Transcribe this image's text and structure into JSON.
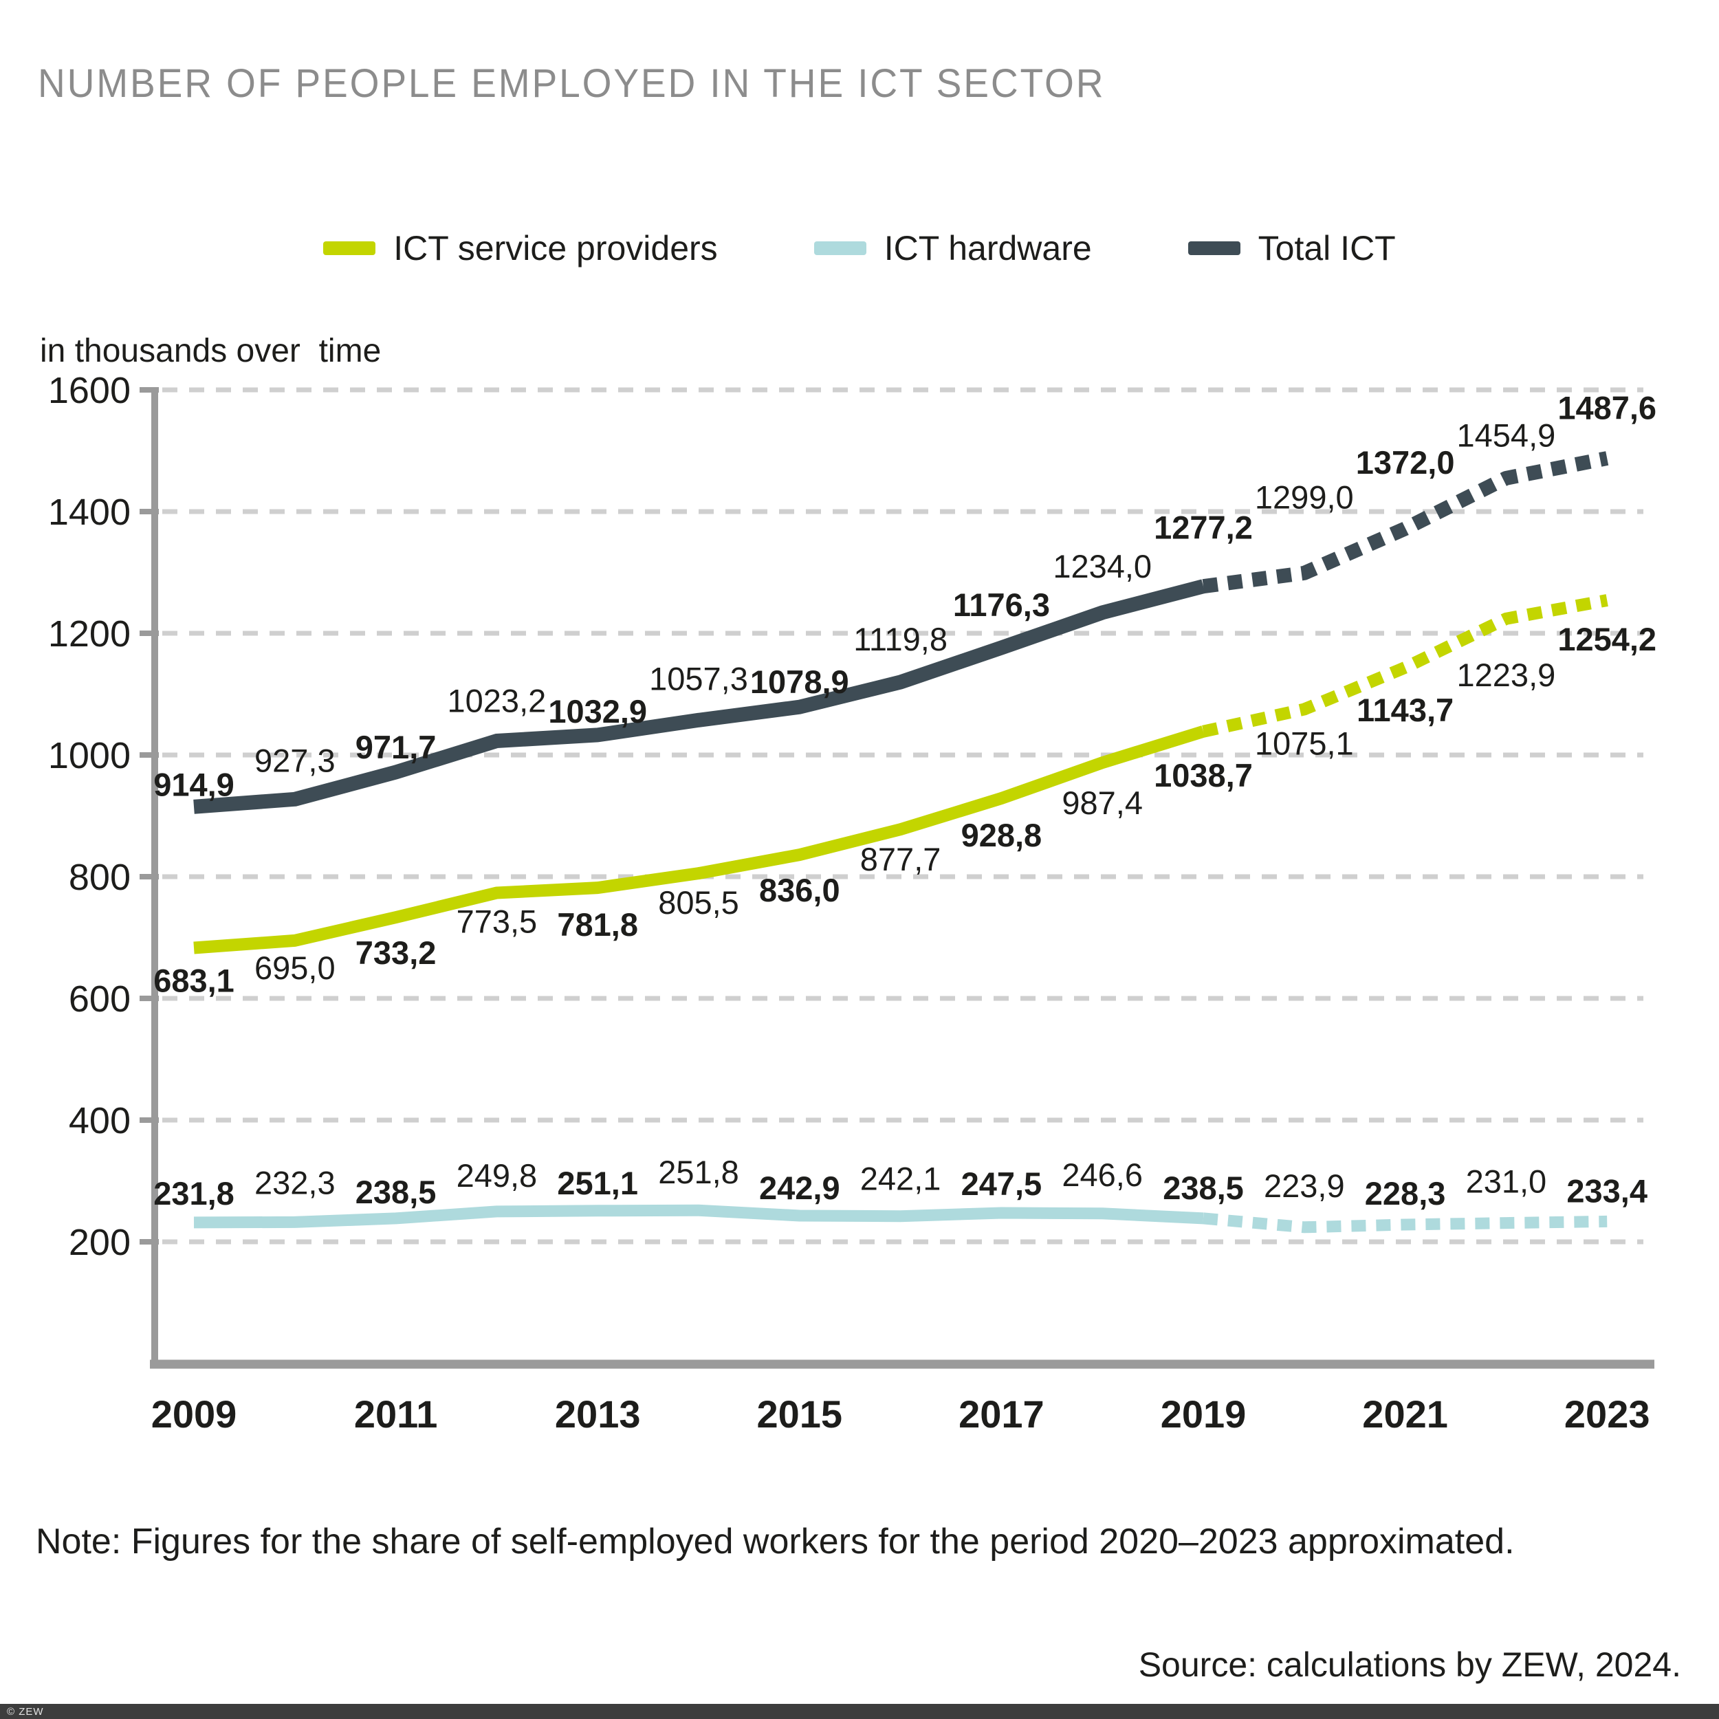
{
  "title": "NUMBER OF PEOPLE EMPLOYED IN THE ICT SECTOR",
  "unit_label": "in thousands over  time",
  "note": "Note: Figures for the share of self-employed workers for the period 2020–2023 approximated.",
  "source": "Source: calculations by ZEW, 2024.",
  "footer": {
    "copyright": "© ZEW"
  },
  "colors": {
    "title_text": "#8c8c8c",
    "body_text": "#1d1d1b",
    "grid": "#cfcfcf",
    "axis": "#9a9a9a",
    "footer_bar": "#3d3d3d",
    "footer_text": "#e3e3e3"
  },
  "chart_data": {
    "type": "line",
    "title": "NUMBER OF PEOPLE EMPLOYED IN THE ICT SECTOR",
    "ylabel": "in thousands over time",
    "x": [
      2009,
      2010,
      2011,
      2012,
      2013,
      2014,
      2015,
      2016,
      2017,
      2018,
      2019,
      2020,
      2021,
      2022,
      2023
    ],
    "x_tick_labels": [
      "2009",
      "2011",
      "2013",
      "2015",
      "2017",
      "2019",
      "2021",
      "2023"
    ],
    "yticks": [
      200,
      400,
      600,
      800,
      1000,
      1200,
      1400,
      1600
    ],
    "ylim": [
      0,
      1600
    ],
    "series": [
      {
        "key": "service",
        "name": "ICT service providers",
        "color": "#c3d500",
        "values": [
          683.1,
          695.0,
          733.2,
          773.5,
          781.8,
          805.5,
          836.0,
          877.7,
          928.8,
          987.4,
          1038.7,
          1075.1,
          1143.7,
          1223.9,
          1254.2
        ],
        "labels": [
          "683,1",
          "695,0",
          "733,2",
          "773,5",
          "781,8",
          "805,5",
          "836,0",
          "877,7",
          "928,8",
          "987,4",
          "1038,7",
          "1075,1",
          "1143,7",
          "1223,9",
          "1254,2"
        ]
      },
      {
        "key": "hardware",
        "name": "ICT hardware",
        "color": "#aedadd",
        "values": [
          231.8,
          232.3,
          238.5,
          249.8,
          251.1,
          251.8,
          242.9,
          242.1,
          247.5,
          246.6,
          238.5,
          223.9,
          228.3,
          231.0,
          233.4
        ],
        "labels": [
          "231,8",
          "232,3",
          "238,5",
          "249,8",
          "251,1",
          "251,8",
          "242,9",
          "242,1",
          "247,5",
          "246,6",
          "238,5",
          "223,9",
          "228,3",
          "231,0",
          "233,4"
        ]
      },
      {
        "key": "total",
        "name": "Total ICT",
        "color": "#3e4c55",
        "values": [
          914.9,
          927.3,
          971.7,
          1023.2,
          1032.9,
          1057.3,
          1078.9,
          1119.8,
          1176.3,
          1234.0,
          1277.2,
          1299.0,
          1372.0,
          1454.9,
          1487.6
        ],
        "labels": [
          "914,9",
          "927,3",
          "971,7",
          "1023,2",
          "1032,9",
          "1057,3",
          "1078,9",
          "1119,8",
          "1176,3",
          "1234,0",
          "1277,2",
          "1299,0",
          "1372,0",
          "1454,9",
          "1487,6"
        ]
      }
    ],
    "layout": {
      "legend_position": "top",
      "grid": "horizontal-dashed",
      "solid_range_years": [
        2009,
        2019
      ],
      "dashed_range_years": [
        2019,
        2023
      ],
      "line_widths": {
        "service": 18,
        "hardware": 17,
        "total": 21
      },
      "label_dy": {
        "service": [
          48,
          40,
          52,
          42,
          54,
          43,
          52,
          44,
          54,
          59,
          64,
          50,
          62,
          82,
          57
        ],
        "hardware": [
          -42,
          -57,
          -38,
          -52,
          -40,
          -55,
          -40,
          -54,
          -42,
          -56,
          -44,
          -60,
          -45,
          -60,
          -44
        ],
        "total": [
          -32,
          -56,
          -36,
          -58,
          -34,
          -60,
          -36,
          -62,
          -62,
          -67,
          -85,
          -110,
          -96,
          -62,
          -73
        ]
      }
    }
  }
}
